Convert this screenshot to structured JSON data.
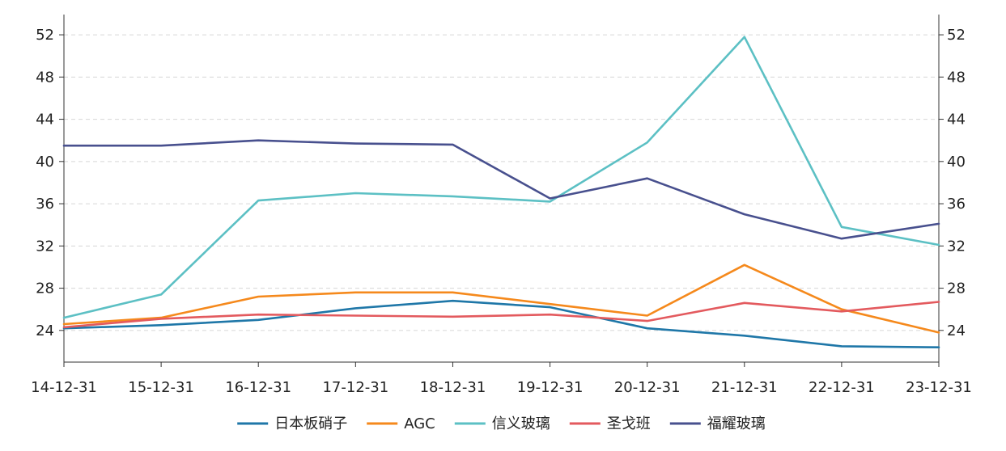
{
  "chart_data": {
    "type": "line",
    "x": [
      "14-12-31",
      "15-12-31",
      "16-12-31",
      "17-12-31",
      "18-12-31",
      "19-12-31",
      "20-12-31",
      "21-12-31",
      "22-12-31",
      "23-12-31"
    ],
    "series": [
      {
        "name": "日本板硝子",
        "color": "#1f77a8",
        "values": [
          24.2,
          24.5,
          25.0,
          26.1,
          26.8,
          26.2,
          24.2,
          23.5,
          22.5,
          22.4
        ]
      },
      {
        "name": "AGC",
        "color": "#f5891c",
        "values": [
          24.6,
          25.2,
          27.2,
          27.6,
          27.6,
          26.5,
          25.4,
          30.2,
          26.0,
          23.8
        ]
      },
      {
        "name": "信义玻璃",
        "color": "#5cc0c4",
        "values": [
          25.2,
          27.4,
          36.3,
          37.0,
          36.7,
          36.2,
          41.8,
          51.8,
          33.8,
          32.1
        ]
      },
      {
        "name": "圣戈班",
        "color": "#e35a5e",
        "values": [
          24.3,
          25.1,
          25.5,
          25.4,
          25.3,
          25.5,
          24.9,
          26.6,
          25.8,
          26.7
        ]
      },
      {
        "name": "福耀玻璃",
        "color": "#48508e",
        "values": [
          41.5,
          41.5,
          42.0,
          41.7,
          41.6,
          36.5,
          38.4,
          35.0,
          32.7,
          34.1
        ]
      }
    ],
    "y_ticks": [
      "24",
      "28",
      "32",
      "36",
      "40",
      "44",
      "48",
      "52"
    ],
    "ylim": [
      21,
      53
    ],
    "grid": "horizontal dashed",
    "legend_position": "bottom-center",
    "secondary_y_axis": true
  }
}
